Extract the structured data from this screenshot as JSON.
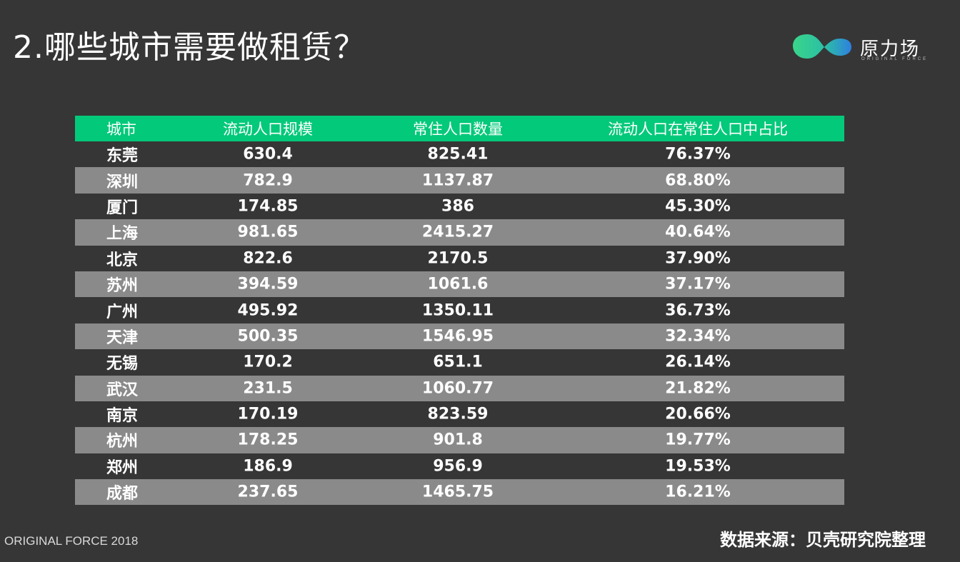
{
  "title": "2.哪些城市需要做租赁？",
  "logo": {
    "name": "原力场",
    "subtitle": "ORIGINAL FORCE",
    "colors": [
      "#2ecf8e",
      "#2f88d8"
    ]
  },
  "table": {
    "headers": [
      "城市",
      "流动人口规模",
      "常住人口数量",
      "流动人口在常住人口中占比"
    ],
    "rows": [
      [
        "东莞",
        "630.4",
        "825.41",
        "76.37%"
      ],
      [
        "深圳",
        "782.9",
        "1137.87",
        "68.80%"
      ],
      [
        "厦门",
        "174.85",
        "386",
        "45.30%"
      ],
      [
        "上海",
        "981.65",
        "2415.27",
        "40.64%"
      ],
      [
        "北京",
        "822.6",
        "2170.5",
        "37.90%"
      ],
      [
        "苏州",
        "394.59",
        "1061.6",
        "37.17%"
      ],
      [
        "广州",
        "495.92",
        "1350.11",
        "36.73%"
      ],
      [
        "天津",
        "500.35",
        "1546.95",
        "32.34%"
      ],
      [
        "无锡",
        "170.2",
        "651.1",
        "26.14%"
      ],
      [
        "武汉",
        "231.5",
        "1060.77",
        "21.82%"
      ],
      [
        "南京",
        "170.19",
        "823.59",
        "20.66%"
      ],
      [
        "杭州",
        "178.25",
        "901.8",
        "19.77%"
      ],
      [
        "郑州",
        "186.9",
        "956.9",
        "19.53%"
      ],
      [
        "成都",
        "237.65",
        "1465.75",
        "16.21%"
      ]
    ],
    "header_color": "#03c97a",
    "stripe_color": "#8a8a8a"
  },
  "footer": {
    "left": "ORIGINAL FORCE 2018",
    "right": "数据来源：贝壳研究院整理"
  }
}
